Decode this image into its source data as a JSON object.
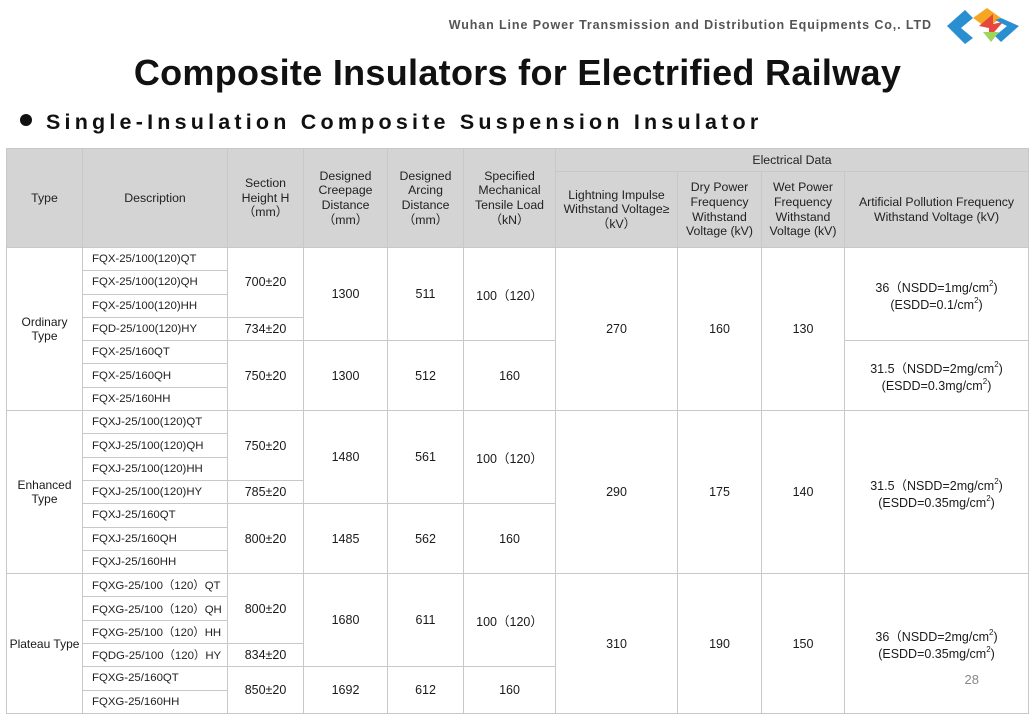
{
  "company": "Wuhan Line Power Transmission and Distribution Equipments Co,. LTD",
  "title": "Composite Insulators for Electrified Railway",
  "subtitle": "Single-Insulation Composite Suspension Insulator",
  "page_number": "28",
  "header": {
    "type": "Type",
    "description": "Description",
    "section_height": "Section Height H（mm）",
    "creepage": "Designed Creepage Distance （mm）",
    "arcing": "Designed Arcing Distance （mm）",
    "tensile": "Specified Mechanical Tensile Load （kN）",
    "electrical": "Electrical Data",
    "lightning": "Lightning Impulse Withstand Voltage≥（kV）",
    "dry": "Dry Power Frequency Withstand Voltage (kV)",
    "wet": "Wet Power Frequency Withstand Voltage (kV)",
    "pollution": "Artificial Pollution Frequency Withstand Voltage (kV)"
  },
  "groups": [
    {
      "type": "Ordinary Type",
      "lightning": "270",
      "dry": "160",
      "wet": "130",
      "rows": [
        "FQX-25/100(120)QT",
        "FQX-25/100(120)QH",
        "FQX-25/100(120)HH",
        "FQD-25/100(120)HY",
        "FQX-25/160QT",
        "FQX-25/160QH",
        "FQX-25/160HH"
      ],
      "heights": [
        "700±20",
        "734±20",
        "750±20"
      ],
      "creepage": [
        "1300",
        "1300"
      ],
      "arcing": [
        "511",
        "512"
      ],
      "tensile": [
        "100（120）",
        "160"
      ],
      "pollution": [
        {
          "value": "36（NSDD=1mg/cm",
          "sup": "2",
          "close": ")",
          "line2": "(ESDD=0.1/cm",
          "sup2": "2",
          "close2": ")"
        },
        {
          "value": "31.5（NSDD=2mg/cm",
          "sup": "2",
          "close": ")",
          "line2": "(ESDD=0.3mg/cm",
          "sup2": "2",
          "close2": ")"
        }
      ]
    },
    {
      "type": "Enhanced Type",
      "lightning": "290",
      "dry": "175",
      "wet": "140",
      "rows": [
        "FQXJ-25/100(120)QT",
        "FQXJ-25/100(120)QH",
        "FQXJ-25/100(120)HH",
        "FQXJ-25/100(120)HY",
        "FQXJ-25/160QT",
        "FQXJ-25/160QH",
        "FQXJ-25/160HH"
      ],
      "heights": [
        "750±20",
        "785±20",
        "800±20"
      ],
      "creepage": [
        "1480",
        "1485"
      ],
      "arcing": [
        "561",
        "562"
      ],
      "tensile": [
        "100（120）",
        "160"
      ],
      "pollution": [
        {
          "value": "31.5（NSDD=2mg/cm",
          "sup": "2",
          "close": ")",
          "line2": "(ESDD=0.35mg/cm",
          "sup2": "2",
          "close2": ")"
        }
      ]
    },
    {
      "type": "Plateau Type",
      "lightning": "310",
      "dry": "190",
      "wet": "150",
      "rows": [
        "FQXG-25/100（120）QT",
        "FQXG-25/100（120）QH",
        "FQXG-25/100（120）HH",
        "FQDG-25/100（120）HY",
        "FQXG-25/160QT",
        "FQXG-25/160HH"
      ],
      "heights": [
        "800±20",
        "834±20",
        "850±20"
      ],
      "creepage": [
        "1680",
        "1692"
      ],
      "arcing": [
        "611",
        "612"
      ],
      "tensile": [
        "100（120）",
        "160"
      ],
      "pollution": [
        {
          "value": "36（NSDD=2mg/cm",
          "sup": "2",
          "close": ")",
          "line2": "(ESDD=0.35mg/cm",
          "sup2": "2",
          "close2": ")"
        }
      ]
    }
  ]
}
